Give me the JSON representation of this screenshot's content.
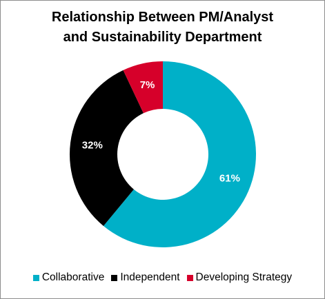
{
  "chart_data": {
    "type": "pie",
    "variant": "donut",
    "title_lines": [
      "Relationship Between PM/Analyst",
      "and Sustainability Department"
    ],
    "slices": [
      {
        "label": "Collaborative",
        "value": 61,
        "value_label": "61%",
        "color": "#00b0c8"
      },
      {
        "label": "Independent",
        "value": 32,
        "value_label": "32%",
        "color": "#000000"
      },
      {
        "label": "Developing Strategy",
        "value": 7,
        "value_label": "7%",
        "color": "#d6002a"
      }
    ],
    "legend_position": "bottom",
    "start_angle": "12 o'clock",
    "direction": "clockwise"
  }
}
